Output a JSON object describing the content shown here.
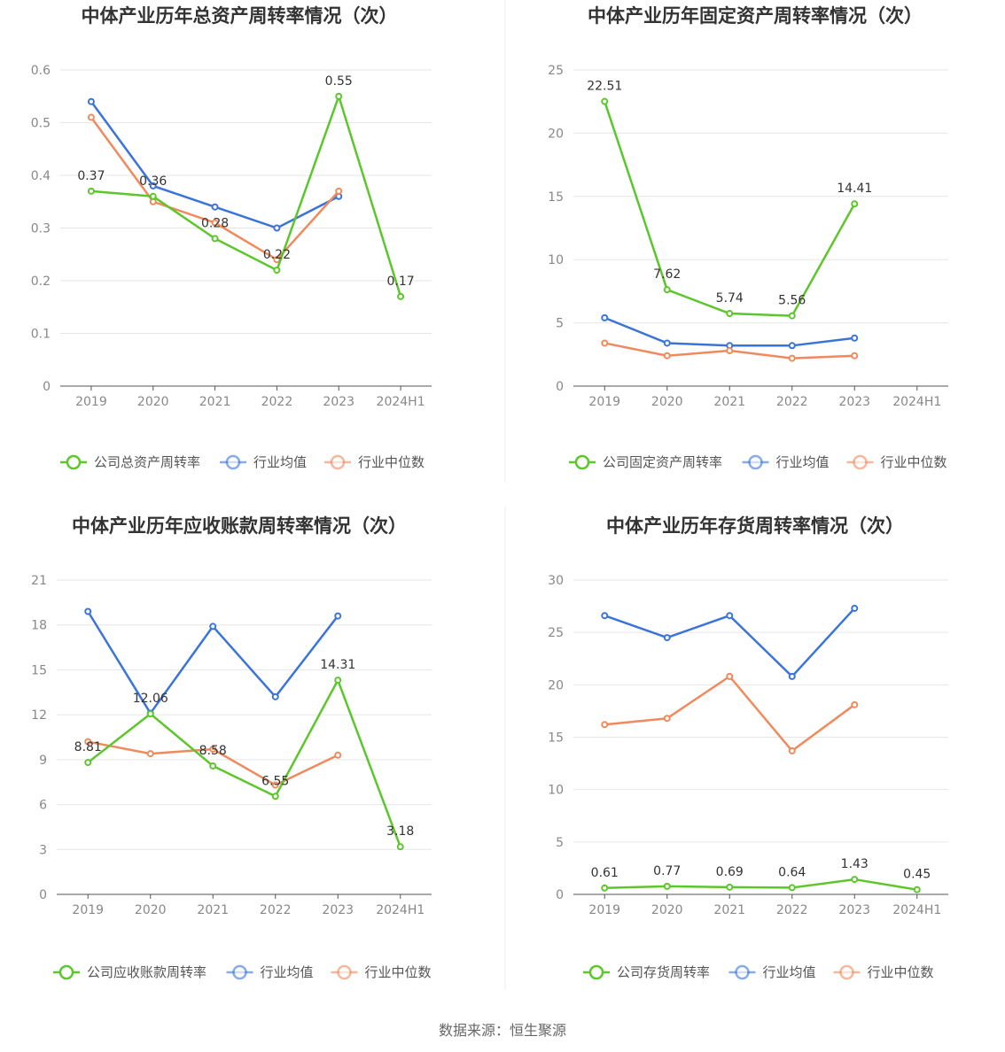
{
  "colors": {
    "company": "#5cc62b",
    "avg": "#3b74d9",
    "median": "#f08a5d",
    "grid": "#e6e6e6",
    "axis": "#555555"
  },
  "legend_icon": "circle-line-icon",
  "source_text": "数据来源：恒生聚源",
  "chart_data": [
    {
      "type": "line",
      "title": "中体产业历年总资产周转率情况（次）",
      "categories": [
        "2019",
        "2020",
        "2021",
        "2022",
        "2023",
        "2024H1"
      ],
      "yticks": [
        "0",
        "0.1",
        "0.2",
        "0.3",
        "0.4",
        "0.5",
        "0.6"
      ],
      "ylim": [
        0,
        0.6
      ],
      "grid": true,
      "legend_position": "bottom",
      "series": [
        {
          "name": "公司总资产周转率",
          "key": "company",
          "values": [
            0.37,
            0.36,
            0.28,
            0.22,
            0.55,
            0.17
          ],
          "labels": [
            "0.37",
            "0.36",
            "0.28",
            "0.22",
            "0.55",
            "0.17"
          ]
        },
        {
          "name": "行业均值",
          "key": "avg",
          "values": [
            0.54,
            0.38,
            0.34,
            0.3,
            0.36,
            null
          ]
        },
        {
          "name": "行业中位数",
          "key": "median",
          "values": [
            0.51,
            0.35,
            0.31,
            0.24,
            0.37,
            null
          ]
        }
      ]
    },
    {
      "type": "line",
      "title": "中体产业历年固定资产周转率情况（次）",
      "categories": [
        "2019",
        "2020",
        "2021",
        "2022",
        "2023",
        "2024H1"
      ],
      "yticks": [
        "0",
        "5",
        "10",
        "15",
        "20",
        "25"
      ],
      "ylim": [
        0,
        25
      ],
      "grid": true,
      "legend_position": "bottom",
      "series": [
        {
          "name": "公司固定资产周转率",
          "key": "company",
          "values": [
            22.51,
            7.62,
            5.74,
            5.56,
            14.41,
            null
          ],
          "labels": [
            "22.51",
            "7.62",
            "5.74",
            "5.56",
            "14.41",
            ""
          ]
        },
        {
          "name": "行业均值",
          "key": "avg",
          "values": [
            5.4,
            3.4,
            3.2,
            3.2,
            3.8,
            null
          ]
        },
        {
          "name": "行业中位数",
          "key": "median",
          "values": [
            3.4,
            2.4,
            2.8,
            2.2,
            2.4,
            null
          ]
        }
      ]
    },
    {
      "type": "line",
      "title": "中体产业历年应收账款周转率情况（次）",
      "categories": [
        "2019",
        "2020",
        "2021",
        "2022",
        "2023",
        "2024H1"
      ],
      "yticks": [
        "0",
        "3",
        "6",
        "9",
        "12",
        "15",
        "18",
        "21"
      ],
      "ylim": [
        0,
        21
      ],
      "grid": true,
      "legend_position": "bottom",
      "series": [
        {
          "name": "公司应收账款周转率",
          "key": "company",
          "values": [
            8.81,
            12.06,
            8.58,
            6.55,
            14.31,
            3.18
          ],
          "labels": [
            "8.81",
            "12.06",
            "8.58",
            "6.55",
            "14.31",
            "3.18"
          ]
        },
        {
          "name": "行业均值",
          "key": "avg",
          "values": [
            18.9,
            12.1,
            17.9,
            13.2,
            18.6,
            null
          ]
        },
        {
          "name": "行业中位数",
          "key": "median",
          "values": [
            10.2,
            9.4,
            9.7,
            7.3,
            9.3,
            null
          ]
        }
      ]
    },
    {
      "type": "line",
      "title": "中体产业历年存货周转率情况（次）",
      "categories": [
        "2019",
        "2020",
        "2021",
        "2022",
        "2023",
        "2024H1"
      ],
      "yticks": [
        "0",
        "5",
        "10",
        "15",
        "20",
        "25",
        "30"
      ],
      "ylim": [
        0,
        30
      ],
      "grid": true,
      "legend_position": "bottom",
      "series": [
        {
          "name": "公司存货周转率",
          "key": "company",
          "values": [
            0.61,
            0.77,
            0.69,
            0.64,
            1.43,
            0.45
          ],
          "labels": [
            "0.61",
            "0.77",
            "0.69",
            "0.64",
            "1.43",
            "0.45"
          ]
        },
        {
          "name": "行业均值",
          "key": "avg",
          "values": [
            26.6,
            24.5,
            26.6,
            20.8,
            27.3,
            null
          ]
        },
        {
          "name": "行业中位数",
          "key": "median",
          "values": [
            16.2,
            16.8,
            20.8,
            13.7,
            18.1,
            null
          ]
        }
      ]
    }
  ]
}
